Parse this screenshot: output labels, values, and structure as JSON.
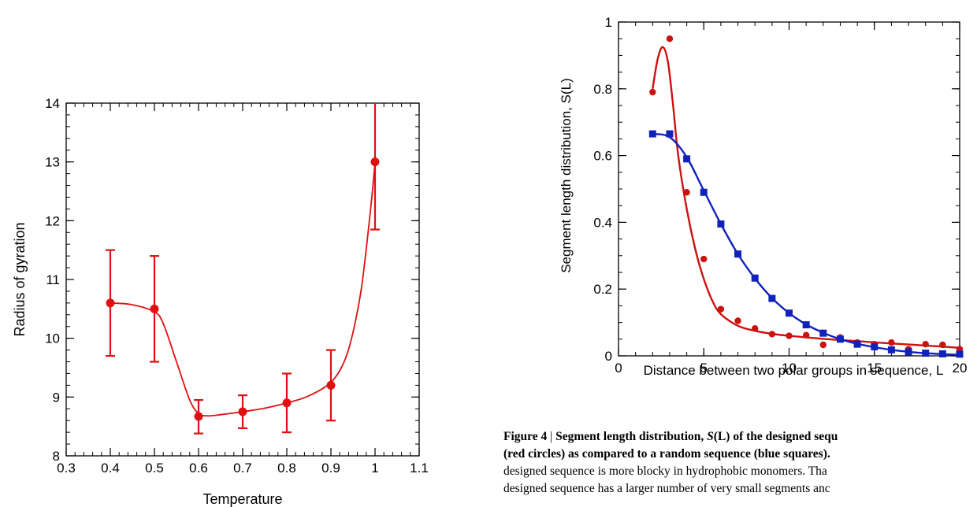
{
  "chart_data": [
    {
      "type": "scatter",
      "title": "",
      "xlabel": "Temperature",
      "ylabel": "Radius of gyration",
      "xlim": [
        0.3,
        1.1
      ],
      "ylim": [
        8,
        14
      ],
      "xticks": [
        0.3,
        0.4,
        0.5,
        0.6,
        0.7,
        0.8,
        0.9,
        1.0,
        1.1
      ],
      "xtick_labels": [
        "0.3",
        "0.4",
        "0.5",
        "0.6",
        "0.7",
        "0.8",
        "0.9",
        "1",
        "1.1"
      ],
      "yticks": [
        8,
        9,
        10,
        11,
        12,
        13,
        14
      ],
      "ytick_labels": [
        "8",
        "9",
        "10",
        "11",
        "12",
        "13",
        "14"
      ],
      "color": "#dd1111",
      "series": [
        {
          "marker": "circle",
          "x": [
            0.4,
            0.5,
            0.6,
            0.7,
            0.8,
            0.9,
            1.0
          ],
          "y": [
            10.6,
            10.5,
            8.67,
            8.75,
            8.9,
            9.2,
            13.0
          ],
          "err_low": [
            9.7,
            9.6,
            8.38,
            8.47,
            8.4,
            8.6,
            11.85
          ],
          "err_high": [
            11.5,
            11.4,
            8.95,
            9.03,
            9.4,
            9.8,
            14.0
          ]
        }
      ],
      "fit_curve": {
        "x": [
          0.4,
          0.45,
          0.5,
          0.52,
          0.55,
          0.58,
          0.6,
          0.62,
          0.65,
          0.7,
          0.75,
          0.8,
          0.85,
          0.9,
          0.93,
          0.95,
          0.97,
          0.99,
          1.0
        ],
        "y": [
          10.6,
          10.57,
          10.45,
          10.25,
          9.6,
          8.95,
          8.72,
          8.68,
          8.7,
          8.75,
          8.81,
          8.9,
          9.02,
          9.25,
          9.6,
          10.1,
          10.9,
          12.2,
          13.0
        ]
      }
    },
    {
      "type": "scatter",
      "title": "",
      "xlabel": "Distance between two polar groups in sequence, L",
      "ylabel": "Segment length distribution, S(L)",
      "xlim": [
        0,
        20
      ],
      "ylim": [
        0,
        1
      ],
      "xticks": [
        0,
        5,
        10,
        15,
        20
      ],
      "xtick_labels": [
        "0",
        "5",
        "10",
        "15",
        "20"
      ],
      "yticks": [
        0,
        0.2,
        0.4,
        0.6,
        0.8,
        1
      ],
      "ytick_labels": [
        "0",
        "0.2",
        "0.4",
        "0.6",
        "0.8",
        "1"
      ],
      "series": [
        {
          "marker": "circle",
          "color": "#cc1111",
          "x": [
            2,
            3,
            4,
            5,
            6,
            7,
            8,
            9,
            10,
            11,
            12,
            13,
            14,
            15,
            16,
            17,
            18,
            19,
            20
          ],
          "y": [
            0.79,
            0.95,
            0.49,
            0.29,
            0.14,
            0.105,
            0.082,
            0.065,
            0.06,
            0.062,
            0.033,
            0.055,
            0.04,
            0.035,
            0.04,
            0.02,
            0.035,
            0.033,
            0.02
          ]
        },
        {
          "marker": "square",
          "color": "#1122bb",
          "x": [
            2,
            3,
            4,
            5,
            6,
            7,
            8,
            9,
            10,
            11,
            12,
            13,
            14,
            15,
            16,
            17,
            18,
            19,
            20
          ],
          "y": [
            0.665,
            0.665,
            0.59,
            0.49,
            0.395,
            0.305,
            0.233,
            0.172,
            0.128,
            0.093,
            0.068,
            0.05,
            0.035,
            0.027,
            0.018,
            0.012,
            0.008,
            0.006,
            0.005
          ]
        }
      ],
      "fit_curves": [
        {
          "color": "#cc1111",
          "x": [
            2.0,
            2.3,
            2.6,
            2.9,
            3.2,
            3.5,
            4.0,
            4.5,
            5.0,
            5.5,
            6.0,
            7.0,
            8.0,
            9.0,
            10.0,
            12.0,
            14.0,
            16.0,
            18.0,
            20.0
          ],
          "y": [
            0.8,
            0.89,
            0.925,
            0.88,
            0.75,
            0.6,
            0.44,
            0.32,
            0.23,
            0.165,
            0.125,
            0.09,
            0.075,
            0.066,
            0.06,
            0.051,
            0.044,
            0.037,
            0.031,
            0.024
          ]
        },
        {
          "color": "#1122bb",
          "x": [
            2.0,
            3.0,
            4.0,
            5.0,
            6.0,
            7.0,
            8.0,
            9.0,
            10.0,
            11.0,
            12.0,
            13.0,
            14.0,
            15.0,
            16.0,
            17.0,
            18.0,
            19.0,
            20.0
          ],
          "y": [
            0.665,
            0.655,
            0.595,
            0.495,
            0.395,
            0.305,
            0.232,
            0.173,
            0.128,
            0.094,
            0.069,
            0.05,
            0.036,
            0.026,
            0.018,
            0.012,
            0.008,
            0.005,
            0.003
          ]
        }
      ]
    }
  ],
  "caption": {
    "figure_label": "Figure 4",
    "separator": "|",
    "title_part1": "Segment length distribution, ",
    "title_symbol": "S",
    "title_arg": "(L)",
    "title_part2": " of the designed sequ",
    "line2": "(red circles) as compared to a random sequence (blue squares).",
    "line3": "designed sequence is more blocky in hydrophobic monomers. Tha",
    "line4": "designed sequence has a larger number of very small segments anc"
  }
}
